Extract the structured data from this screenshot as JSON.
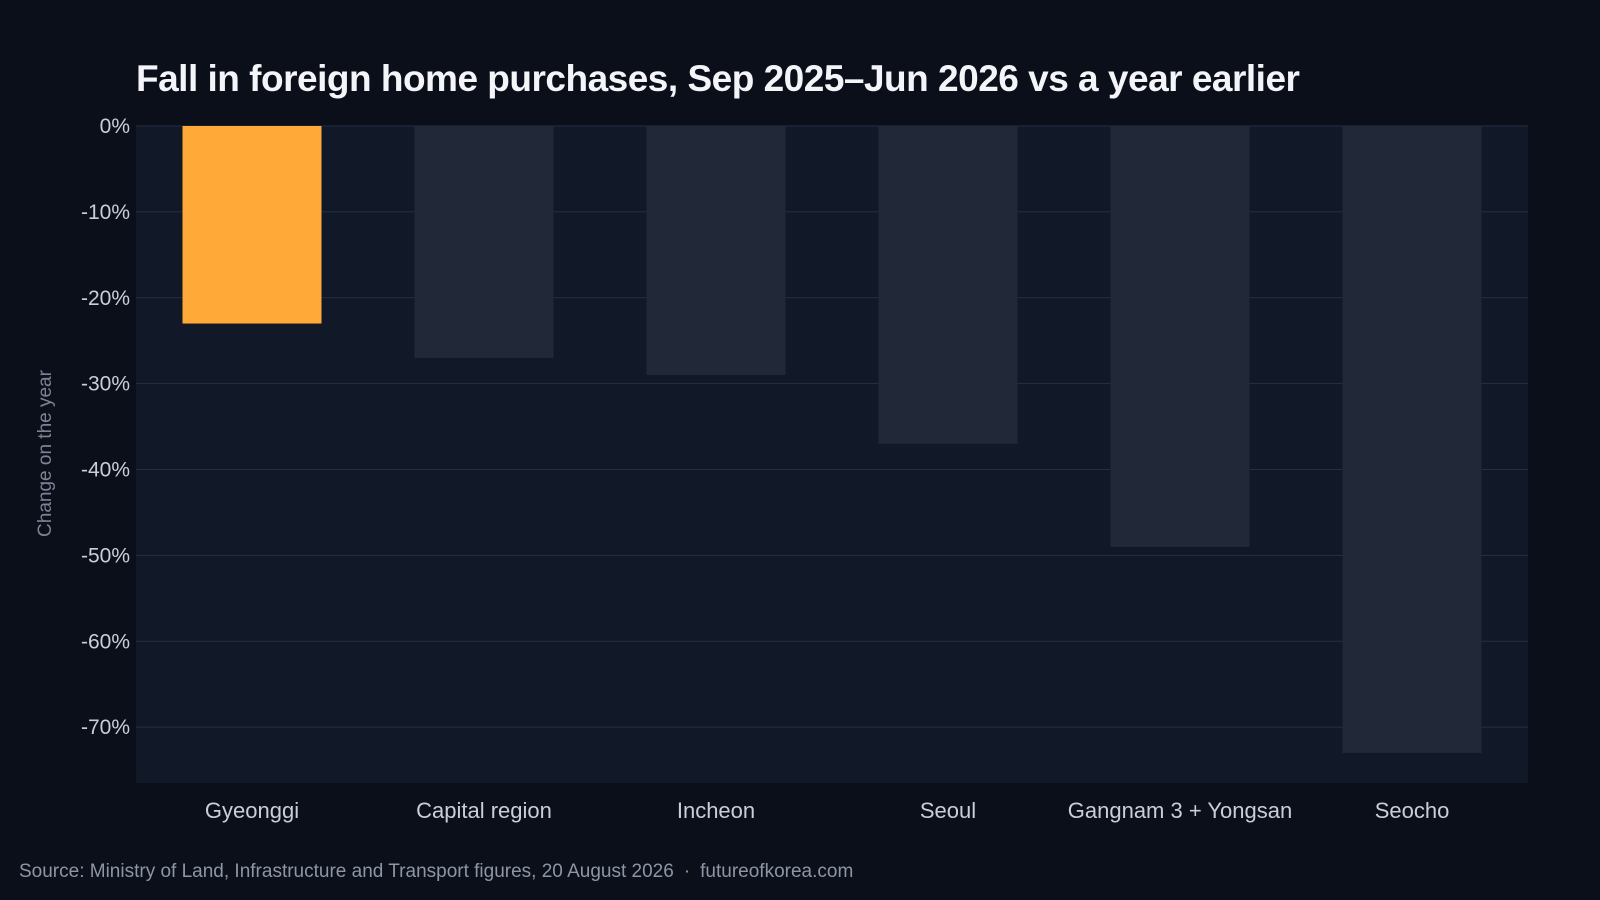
{
  "chart_data": {
    "type": "bar",
    "title": "Fall in foreign home purchases, Sep 2025–Jun 2026 vs a year earlier",
    "xlabel": "",
    "ylabel": "Change on the year",
    "categories": [
      "Gyeonggi",
      "Capital region",
      "Incheon",
      "Seoul",
      "Gangnam 3 + Yongsan",
      "Seocho"
    ],
    "values": [
      -23,
      -27,
      -29,
      -37,
      -49,
      -73
    ],
    "highlight_index": 0,
    "yticks": [
      0,
      -10,
      -20,
      -30,
      -40,
      -50,
      -60,
      -70
    ],
    "ytick_labels": [
      "0%",
      "-10%",
      "-20%",
      "-30%",
      "-40%",
      "-50%",
      "-60%",
      "-70%"
    ],
    "ylim": [
      -76.5,
      0
    ],
    "grid": true,
    "legend": "none",
    "colors": {
      "highlight": "#ffa938",
      "bar": "#212939",
      "plot_bg": "#111827",
      "grid": "#243044"
    }
  },
  "footer": {
    "source": "Source: Ministry of Land, Infrastructure and Transport figures, 20 August 2026",
    "separator": "·",
    "site": "futureofkorea.com"
  }
}
